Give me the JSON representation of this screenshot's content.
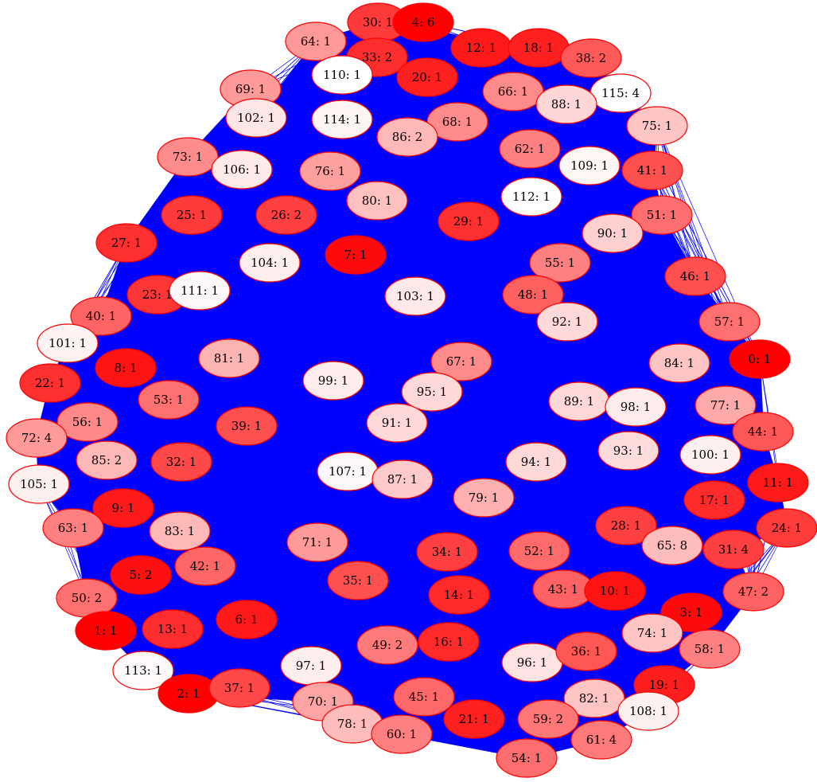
{
  "graph": {
    "edge_color": "#0000ff",
    "node_stroke": "#ff0000",
    "background": "#ffffff",
    "nodes": [
      {
        "id": "30",
        "label": "30: 1",
        "fill": "#ff3a3a"
      },
      {
        "id": "4",
        "label": "4: 6",
        "fill": "#ff0000"
      },
      {
        "id": "64",
        "label": "64: 1",
        "fill": "#ff9999"
      },
      {
        "id": "33",
        "label": "33: 2",
        "fill": "#ff2e2e"
      },
      {
        "id": "12",
        "label": "12: 1",
        "fill": "#ff1a1a"
      },
      {
        "id": "18",
        "label": "18: 1",
        "fill": "#ff2020"
      },
      {
        "id": "38",
        "label": "38: 2",
        "fill": "#ff5a5a"
      },
      {
        "id": "110",
        "label": "110: 1",
        "fill": "#ffffff"
      },
      {
        "id": "20",
        "label": "20: 1",
        "fill": "#ff2020"
      },
      {
        "id": "69",
        "label": "69: 1",
        "fill": "#ff9a9a"
      },
      {
        "id": "66",
        "label": "66: 1",
        "fill": "#ff8a8a"
      },
      {
        "id": "115",
        "label": "115: 4",
        "fill": "#ffffff"
      },
      {
        "id": "88",
        "label": "88: 1",
        "fill": "#ffd6d6"
      },
      {
        "id": "102",
        "label": "102: 1",
        "fill": "#ffe6e6"
      },
      {
        "id": "114",
        "label": "114: 1",
        "fill": "#fff4f4"
      },
      {
        "id": "68",
        "label": "68: 1",
        "fill": "#ff8c8c"
      },
      {
        "id": "86",
        "label": "86: 2",
        "fill": "#ffb8b8"
      },
      {
        "id": "75",
        "label": "75: 1",
        "fill": "#ffc4c4"
      },
      {
        "id": "62",
        "label": "62: 1",
        "fill": "#ff8080"
      },
      {
        "id": "73",
        "label": "73: 1",
        "fill": "#ff8c8c"
      },
      {
        "id": "106",
        "label": "106: 1",
        "fill": "#ffeaea"
      },
      {
        "id": "76",
        "label": "76: 1",
        "fill": "#ffa0a0"
      },
      {
        "id": "109",
        "label": "109: 1",
        "fill": "#fff6f6"
      },
      {
        "id": "41",
        "label": "41: 1",
        "fill": "#ff5050"
      },
      {
        "id": "112",
        "label": "112: 1",
        "fill": "#ffffff"
      },
      {
        "id": "80",
        "label": "80: 1",
        "fill": "#ffc0c0"
      },
      {
        "id": "25",
        "label": "25: 1",
        "fill": "#ff3a3a"
      },
      {
        "id": "26",
        "label": "26: 2",
        "fill": "#ff4040"
      },
      {
        "id": "29",
        "label": "29: 1",
        "fill": "#ff3030"
      },
      {
        "id": "51",
        "label": "51: 1",
        "fill": "#ff6e6e"
      },
      {
        "id": "90",
        "label": "90: 1",
        "fill": "#ffd0d0"
      },
      {
        "id": "27",
        "label": "27: 1",
        "fill": "#ff3030"
      },
      {
        "id": "7",
        "label": "7: 1",
        "fill": "#ff0a0a"
      },
      {
        "id": "104",
        "label": "104: 1",
        "fill": "#ffeeee"
      },
      {
        "id": "55",
        "label": "55: 1",
        "fill": "#ff8080"
      },
      {
        "id": "46",
        "label": "46: 1",
        "fill": "#ff5050"
      },
      {
        "id": "23",
        "label": "23: 1",
        "fill": "#ff3636"
      },
      {
        "id": "111",
        "label": "111: 1",
        "fill": "#fff8f8"
      },
      {
        "id": "103",
        "label": "103: 1",
        "fill": "#ffe8e8"
      },
      {
        "id": "48",
        "label": "48: 1",
        "fill": "#ff6060"
      },
      {
        "id": "40",
        "label": "40: 1",
        "fill": "#ff6464"
      },
      {
        "id": "92",
        "label": "92: 1",
        "fill": "#ffd8d8"
      },
      {
        "id": "57",
        "label": "57: 1",
        "fill": "#ff7070"
      },
      {
        "id": "101",
        "label": "101: 1",
        "fill": "#fff2f2"
      },
      {
        "id": "81",
        "label": "81: 1",
        "fill": "#ffb4b4"
      },
      {
        "id": "0",
        "label": "0: 1",
        "fill": "#ff0000"
      },
      {
        "id": "8",
        "label": "8: 1",
        "fill": "#ff1414"
      },
      {
        "id": "67",
        "label": "67: 1",
        "fill": "#ff8a8a"
      },
      {
        "id": "84",
        "label": "84: 1",
        "fill": "#ffc4c4"
      },
      {
        "id": "22",
        "label": "22: 1",
        "fill": "#ff3030"
      },
      {
        "id": "99",
        "label": "99: 1",
        "fill": "#ffecec"
      },
      {
        "id": "95",
        "label": "95: 1",
        "fill": "#ffd8d8"
      },
      {
        "id": "53",
        "label": "53: 1",
        "fill": "#ff7070"
      },
      {
        "id": "89",
        "label": "89: 1",
        "fill": "#ffd8d8"
      },
      {
        "id": "98",
        "label": "98: 1",
        "fill": "#ffecec"
      },
      {
        "id": "77",
        "label": "77: 1",
        "fill": "#ffaaaa"
      },
      {
        "id": "56",
        "label": "56: 1",
        "fill": "#ff8888"
      },
      {
        "id": "39",
        "label": "39: 1",
        "fill": "#ff5050"
      },
      {
        "id": "91",
        "label": "91: 1",
        "fill": "#ffd8d8"
      },
      {
        "id": "44",
        "label": "44: 1",
        "fill": "#ff5858"
      },
      {
        "id": "72",
        "label": "72: 4",
        "fill": "#ff9a9a"
      },
      {
        "id": "85",
        "label": "85: 2",
        "fill": "#ffb8b8"
      },
      {
        "id": "32",
        "label": "32: 1",
        "fill": "#ff4848"
      },
      {
        "id": "93",
        "label": "93: 1",
        "fill": "#ffdcdc"
      },
      {
        "id": "100",
        "label": "100: 1",
        "fill": "#fff0f0"
      },
      {
        "id": "94",
        "label": "94: 1",
        "fill": "#ffd8d8"
      },
      {
        "id": "107",
        "label": "107: 1",
        "fill": "#fff8f8"
      },
      {
        "id": "87",
        "label": "87: 1",
        "fill": "#ffcaca"
      },
      {
        "id": "105",
        "label": "105: 1",
        "fill": "#fff0f0"
      },
      {
        "id": "11",
        "label": "11: 1",
        "fill": "#ff1a1a"
      },
      {
        "id": "9",
        "label": "9: 1",
        "fill": "#ff1a1a"
      },
      {
        "id": "79",
        "label": "79: 1",
        "fill": "#ffb0b0"
      },
      {
        "id": "17",
        "label": "17: 1",
        "fill": "#ff2a2a"
      },
      {
        "id": "63",
        "label": "63: 1",
        "fill": "#ff8080"
      },
      {
        "id": "83",
        "label": "83: 1",
        "fill": "#ffb8b8"
      },
      {
        "id": "28",
        "label": "28: 1",
        "fill": "#ff4040"
      },
      {
        "id": "24",
        "label": "24: 1",
        "fill": "#ff3c3c"
      },
      {
        "id": "71",
        "label": "71: 1",
        "fill": "#ff9a9a"
      },
      {
        "id": "34",
        "label": "34: 1",
        "fill": "#ff4040"
      },
      {
        "id": "52",
        "label": "52: 1",
        "fill": "#ff6a6a"
      },
      {
        "id": "65",
        "label": "65: 8",
        "fill": "#ffbcbc"
      },
      {
        "id": "31",
        "label": "31: 4",
        "fill": "#ff4040"
      },
      {
        "id": "5",
        "label": "5: 2",
        "fill": "#ff1010"
      },
      {
        "id": "42",
        "label": "42: 1",
        "fill": "#ff6666"
      },
      {
        "id": "35",
        "label": "35: 1",
        "fill": "#ff5050"
      },
      {
        "id": "14",
        "label": "14: 1",
        "fill": "#ff2a2a"
      },
      {
        "id": "43",
        "label": "43: 1",
        "fill": "#ff6262"
      },
      {
        "id": "10",
        "label": "10: 1",
        "fill": "#ff1414"
      },
      {
        "id": "47",
        "label": "47: 2",
        "fill": "#ff6262"
      },
      {
        "id": "50",
        "label": "50: 2",
        "fill": "#ff7070"
      },
      {
        "id": "3",
        "label": "3: 1",
        "fill": "#ff0a0a"
      },
      {
        "id": "1",
        "label": "1: 1",
        "fill": "#ff0000"
      },
      {
        "id": "13",
        "label": "13: 1",
        "fill": "#ff2e2e"
      },
      {
        "id": "6",
        "label": "6: 1",
        "fill": "#ff1a1a"
      },
      {
        "id": "74",
        "label": "74: 1",
        "fill": "#ffc4c4"
      },
      {
        "id": "97",
        "label": "97: 1",
        "fill": "#ffeeee"
      },
      {
        "id": "49",
        "label": "49: 2",
        "fill": "#ff7a7a"
      },
      {
        "id": "16",
        "label": "16: 1",
        "fill": "#ff2a2a"
      },
      {
        "id": "96",
        "label": "96: 1",
        "fill": "#ffe2e2"
      },
      {
        "id": "36",
        "label": "36: 1",
        "fill": "#ff5656"
      },
      {
        "id": "58",
        "label": "58: 1",
        "fill": "#ff8080"
      },
      {
        "id": "113",
        "label": "113: 1",
        "fill": "#fffafa"
      },
      {
        "id": "2",
        "label": "2: 1",
        "fill": "#ff0000"
      },
      {
        "id": "37",
        "label": "37: 1",
        "fill": "#ff4848"
      },
      {
        "id": "70",
        "label": "70: 1",
        "fill": "#ffa4a4"
      },
      {
        "id": "45",
        "label": "45: 1",
        "fill": "#ff6868"
      },
      {
        "id": "19",
        "label": "19: 1",
        "fill": "#ff1e1e"
      },
      {
        "id": "82",
        "label": "82: 1",
        "fill": "#ffc4c4"
      },
      {
        "id": "108",
        "label": "108: 1",
        "fill": "#fff0f0"
      },
      {
        "id": "78",
        "label": "78: 1",
        "fill": "#ffbcbc"
      },
      {
        "id": "60",
        "label": "60: 1",
        "fill": "#ff8080"
      },
      {
        "id": "21",
        "label": "21: 1",
        "fill": "#ff2020"
      },
      {
        "id": "59",
        "label": "59: 2",
        "fill": "#ff7878"
      },
      {
        "id": "61",
        "label": "61: 4",
        "fill": "#ff7a7a"
      },
      {
        "id": "54",
        "label": "54: 1",
        "fill": "#ff6e6e"
      }
    ]
  }
}
